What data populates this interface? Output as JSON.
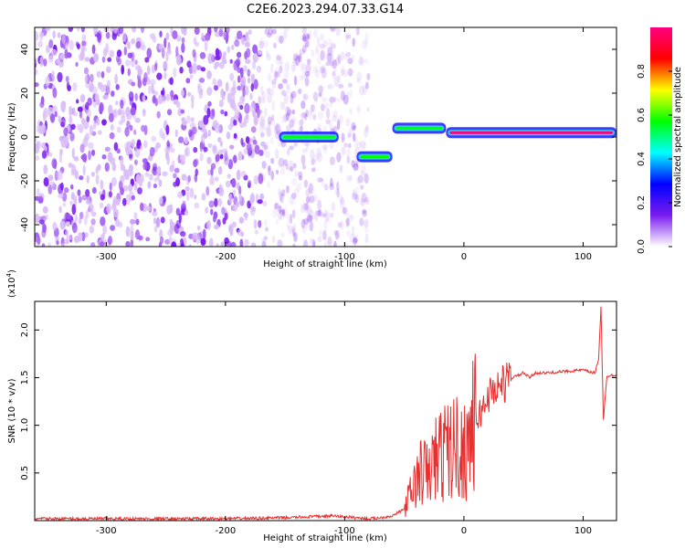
{
  "title": "C2E6.2023.294.07.33.G14",
  "chart_data": [
    {
      "type": "heatmap",
      "xlabel": "Height of straight line (km)",
      "ylabel": "Frequency (Hz)",
      "xlim": [
        -360,
        128
      ],
      "ylim": [
        -50,
        50
      ],
      "x_ticks": [
        -300,
        -200,
        -100,
        0,
        100
      ],
      "y_ticks": [
        -40,
        -20,
        0,
        20,
        40
      ],
      "colorbar": {
        "label": "Normalized spectral amplitude",
        "range": [
          0,
          1
        ],
        "ticks": [
          "0.0",
          "0.2",
          "0.4",
          "0.6",
          "0.8"
        ],
        "colors": [
          "#ffffff",
          "#7a1cf0",
          "#0000ff",
          "#00ffff",
          "#00ff00",
          "#ffff00",
          "#ff0000",
          "#ff0080"
        ]
      },
      "regions": [
        {
          "name": "noise",
          "x_range": [
            -360,
            -80
          ],
          "y_range": [
            -50,
            50
          ],
          "amplitude": 0.2
        },
        {
          "name": "signal",
          "x_range": [
            -155,
            -105
          ],
          "frequency": 0,
          "amplitude": 0.5
        },
        {
          "name": "signal",
          "x_range": [
            -90,
            -60
          ],
          "frequency": -9,
          "amplitude": 0.6
        },
        {
          "name": "signal",
          "x_range": [
            -60,
            -15
          ],
          "frequency": 4,
          "amplitude": 0.6
        },
        {
          "name": "signal",
          "x_range": [
            -15,
            128
          ],
          "frequency": 2,
          "amplitude": 0.95
        }
      ]
    },
    {
      "type": "line",
      "xlabel": "Height of straight line (km)",
      "ylabel": "SNR (10 * v/v)",
      "scale_label": "(x10",
      "scale_exp": "4",
      "xlim": [
        -360,
        128
      ],
      "ylim": [
        0,
        2.3
      ],
      "x_ticks": [
        -300,
        -200,
        -100,
        0,
        100
      ],
      "y_ticks": [
        0.5,
        1.0,
        1.5,
        2.0
      ],
      "y_tick_labels": [
        "0.5",
        "1.0",
        "1.5",
        "2.0"
      ],
      "color": "#e83030",
      "series": [
        {
          "x": [
            -360,
            -300,
            -250,
            -200,
            -150,
            -110,
            -100,
            -90,
            -80,
            -70,
            -60,
            -50,
            -45,
            -40,
            -35,
            -30,
            -25,
            -20,
            -15,
            -10,
            -5,
            0,
            5,
            10,
            15,
            20,
            25,
            30,
            35,
            40,
            45,
            50,
            55,
            60,
            70,
            80,
            90,
            100,
            105,
            110,
            113,
            115,
            117,
            120,
            128
          ],
          "y": [
            0.02,
            0.02,
            0.02,
            0.02,
            0.03,
            0.05,
            0.04,
            0.03,
            0.02,
            0.03,
            0.05,
            0.12,
            0.28,
            0.42,
            0.55,
            0.48,
            0.65,
            0.7,
            0.75,
            0.78,
            0.8,
            0.72,
            0.95,
            1.05,
            1.15,
            1.3,
            1.38,
            1.42,
            1.45,
            1.5,
            1.52,
            1.55,
            1.5,
            1.55,
            1.55,
            1.56,
            1.57,
            1.58,
            1.56,
            1.55,
            1.7,
            2.25,
            1.05,
            1.52,
            1.53
          ]
        }
      ]
    }
  ]
}
